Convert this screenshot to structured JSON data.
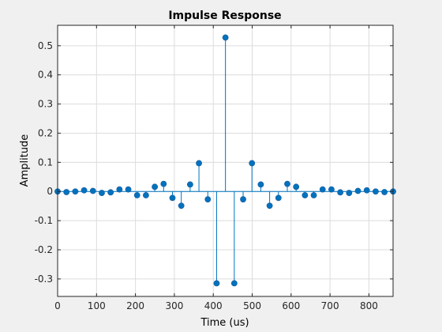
{
  "chart_data": {
    "type": "stem",
    "title": "Impulse Response",
    "xlabel": "Time (us)",
    "ylabel": "Amplitude",
    "xlim": [
      0,
      862
    ],
    "ylim": [
      -0.36,
      0.57
    ],
    "xticks": [
      0,
      100,
      200,
      300,
      400,
      500,
      600,
      700,
      800
    ],
    "xtick_labels": [
      "0",
      "100",
      "200",
      "300",
      "400",
      "500",
      "600",
      "700",
      "800"
    ],
    "yticks": [
      -0.3,
      -0.2,
      -0.1,
      0,
      0.1,
      0.2,
      0.3,
      0.4,
      0.5
    ],
    "ytick_labels": [
      "-0.3",
      "-0.2",
      "-0.1",
      "0",
      "0.1",
      "0.2",
      "0.3",
      "0.4",
      "0.5"
    ],
    "grid": true,
    "series": [
      {
        "x": [
          0,
          22.7,
          45.4,
          68.1,
          90.8,
          113.5,
          136.2,
          158.9,
          181.6,
          204.3,
          227,
          249.7,
          272.4,
          295.1,
          317.8,
          340.5,
          363.2,
          385.9,
          408.6,
          431.3,
          454,
          476.7,
          499.4,
          522.1,
          544.8,
          567.5,
          590.2,
          612.9,
          635.6,
          658.3,
          681,
          703.7,
          726.4,
          749.1,
          771.8,
          794.5,
          817.2,
          839.9,
          862.6
        ],
        "values": [
          0,
          -0.002,
          0,
          0.004,
          0.002,
          -0.005,
          -0.003,
          0.007,
          0.007,
          -0.013,
          -0.013,
          0.016,
          0.026,
          -0.022,
          -0.049,
          0.024,
          0.097,
          -0.027,
          -0.315,
          0.528,
          -0.315,
          -0.027,
          0.097,
          0.024,
          -0.049,
          -0.022,
          0.026,
          0.016,
          -0.013,
          -0.013,
          0.007,
          0.007,
          -0.003,
          -0.005,
          0.002,
          0.004,
          0,
          -0.002,
          0
        ]
      }
    ],
    "colors": {
      "stem": "#0072bd",
      "marker_face": "#0072bd",
      "grid": "#dcdcdc",
      "axes_box": "#262626",
      "plot_background": "#ffffff",
      "figure_background": "#f0f0f0"
    }
  }
}
